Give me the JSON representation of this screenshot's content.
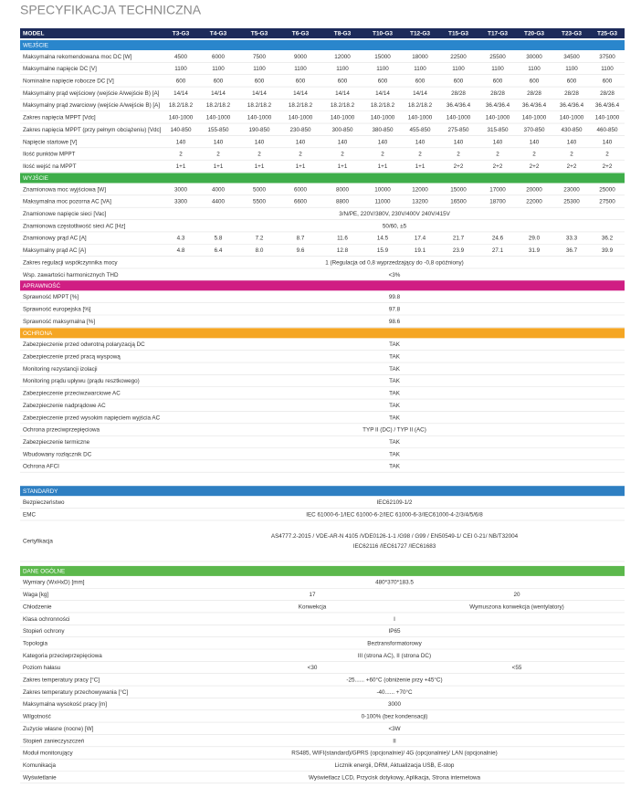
{
  "title": "SPECYFIKACJA TECHNICZNA",
  "table": {
    "header": [
      "MODEL",
      "T3-G3",
      "T4-G3",
      "T5-G3",
      "T6-G3",
      "T8-G3",
      "T10-G3",
      "T12-G3",
      "T15-G3",
      "T17-G3",
      "T20-G3",
      "T23-G3",
      "T25-G3"
    ],
    "sections": [
      {
        "title": "WEJŚCIE",
        "rows": [
          {
            "label": "Maksymalna rekomendowana moc DC [W]",
            "values": [
              "4500",
              "6000",
              "7500",
              "9000",
              "12000",
              "15000",
              "18000",
              "22500",
              "25500",
              "30000",
              "34500",
              "37500"
            ]
          },
          {
            "label": "Maksymalne napięcie DC [V]",
            "values": [
              "1100",
              "1100",
              "1100",
              "1100",
              "1100",
              "1100",
              "1100",
              "1100",
              "1100",
              "1100",
              "1100",
              "1100"
            ]
          },
          {
            "label": "Nominalne napięcie robocze DC [V]",
            "values": [
              "600",
              "600",
              "600",
              "600",
              "600",
              "600",
              "600",
              "600",
              "600",
              "600",
              "600",
              "600"
            ]
          },
          {
            "label": "Maksymalny prąd wejściowy (wejście A/wejście B) [A]",
            "values": [
              "14/14",
              "14/14",
              "14/14",
              "14/14",
              "14/14",
              "14/14",
              "14/14",
              "28/28",
              "28/28",
              "28/28",
              "28/28",
              "28/28"
            ]
          },
          {
            "label": "Maksymalny prąd zwarciowy (wejście A/wejście B) [A]",
            "values": [
              "18.2/18.2",
              "18.2/18.2",
              "18.2/18.2",
              "18.2/18.2",
              "18.2/18.2",
              "18.2/18.2",
              "18.2/18.2",
              "36.4/36.4",
              "36.4/36.4",
              "36.4/36.4",
              "36.4/36.4",
              "36.4/36.4"
            ]
          },
          {
            "label": "Zakres napięcia MPPT [Vdc]",
            "values": [
              "140-1000",
              "140-1000",
              "140-1000",
              "140-1000",
              "140-1000",
              "140-1000",
              "140-1000",
              "140-1000",
              "140-1000",
              "140-1000",
              "140-1000",
              "140-1000"
            ]
          },
          {
            "label": "Zakres napięcia MPPT (przy pełnym obciążeniu) [Vdc]",
            "values": [
              "140-850",
              "155-850",
              "190-850",
              "230-850",
              "300-850",
              "380-850",
              "455-850",
              "275-850",
              "315-850",
              "370-850",
              "430-850",
              "460-850"
            ]
          },
          {
            "label": "Napięcie startowe [V]",
            "values": [
              "140",
              "140",
              "140",
              "140",
              "140",
              "140",
              "140",
              "140",
              "140",
              "140",
              "140",
              "140"
            ]
          },
          {
            "label": "Ilość punktów MPPT",
            "values": [
              "2",
              "2",
              "2",
              "2",
              "2",
              "2",
              "2",
              "2",
              "2",
              "2",
              "2",
              "2"
            ]
          },
          {
            "label": "Ilość wejść na MPPT",
            "values": [
              "1+1",
              "1+1",
              "1+1",
              "1+1",
              "1+1",
              "1+1",
              "1+1",
              "2+2",
              "2+2",
              "2+2",
              "2+2",
              "2+2"
            ]
          }
        ]
      },
      {
        "title": "WYJŚCIE",
        "rows": [
          {
            "label": "Znamionowa moc wyjściowa [W]",
            "values": [
              "3000",
              "4000",
              "5000",
              "6000",
              "8000",
              "10000",
              "12000",
              "15000",
              "17000",
              "20000",
              "23000",
              "25000"
            ]
          },
          {
            "label": "Maksymalna moc pozorna AC [VA]",
            "values": [
              "3300",
              "4400",
              "5500",
              "6600",
              "8800",
              "11000",
              "13200",
              "16500",
              "18700",
              "22000",
              "25300",
              "27500"
            ]
          },
          {
            "label": "Znamionowe napięcie sieci [Vac]",
            "values": [
              "3/N/PE, 220V/380V, 230V/400V 240V/415V"
            ]
          },
          {
            "label": "Znamionowa częstotliwość sieci AC [Hz]",
            "values": [
              "50/60, ±5"
            ]
          },
          {
            "label": "Znamionowy prąd AC [A]",
            "values": [
              "4.3",
              "5.8",
              "7.2",
              "8.7",
              "11.6",
              "14.5",
              "17.4",
              "21.7",
              "24.6",
              "29.0",
              "33.3",
              "36.2"
            ]
          },
          {
            "label": "Maksymalny prąd AC [A]",
            "values": [
              "4.8",
              "6.4",
              "8.0",
              "9.6",
              "12.8",
              "15.9",
              "19.1",
              "23.9",
              "27.1",
              "31.9",
              "36.7",
              "39.9"
            ]
          },
          {
            "label": "Zakres regulacji współczynnika mocy",
            "values": [
              "1 (Regulacja od 0,8 wyprzedzający do -0,8 opóźniony)"
            ]
          },
          {
            "label": "Wsp. zawartości harmonicznych THD",
            "values": [
              "<3%"
            ]
          }
        ]
      },
      {
        "title": "APRAWNOŚĆ",
        "rows": [
          {
            "label": "Sprawność MPPT [%]",
            "values": [
              "99.8"
            ]
          },
          {
            "label": "Sprawność europejska [%]",
            "values": [
              "97.8"
            ]
          },
          {
            "label": "Sprawność maksymalna [%]",
            "values": [
              "98.6"
            ]
          }
        ]
      },
      {
        "title": "OCHRONA",
        "rows": [
          {
            "label": "Zabezpieczenie przed odwrotną polaryzacją DC",
            "values": [
              "TAK"
            ]
          },
          {
            "label": "Zabezpieczenie przed pracą wyspową",
            "values": [
              "TAK"
            ]
          },
          {
            "label": "Monitoring rezystancji izolacji",
            "values": [
              "TAK"
            ]
          },
          {
            "label": "Monitoring prądu upływu (prądu resztkowego)",
            "values": [
              "TAK"
            ]
          },
          {
            "label": "Zabezpieczenie przeciwzwarciowe AC",
            "values": [
              "TAK"
            ]
          },
          {
            "label": "Zabezpieczenie nadprądowe AC",
            "values": [
              "TAK"
            ]
          },
          {
            "label": "Zabezpieczenie przed wysokim napięciem wyjścia AC",
            "values": [
              "TAK"
            ]
          },
          {
            "label": "Ochrona przeciwprzepięciowa",
            "values": [
              "TYP II (DC) / TYP II (AC)"
            ]
          },
          {
            "label": "Zabezpieczenie termiczne",
            "values": [
              "TAK"
            ]
          },
          {
            "label": "Wbudowany rozłącznik DC",
            "values": [
              "TAK"
            ]
          },
          {
            "label": "Ochrona AFCI",
            "values": [
              "TAK"
            ]
          }
        ]
      },
      {
        "title": "STANDARDY",
        "rows": [
          {
            "label": "Bezpieczeństwo",
            "values": [
              "IEC62109-1/2"
            ]
          },
          {
            "label": "EMC",
            "values": [
              "IEC 61000-6-1/IEC 61000-6-2/IEC 61000-6-3/IEC61000-4-2/3/4/5/6/8"
            ]
          },
          {
            "label": "Certyfikacja",
            "lines": [
              "AS4777.2-2015 / VDE-AR-N 4105 /VDE0126-1-1 /G98 / G99 / EN50549-1/ CEI 0-21/ NB/T32004",
              "IEC62116 /IEC61727 /IEC61683"
            ]
          }
        ]
      },
      {
        "title": "DANE OGÓLNE",
        "rows": [
          {
            "label": "Wymiary (WxHxD) [mm]",
            "values": [
              "480*370*183.5"
            ]
          },
          {
            "label": "Waga [kg]",
            "values": [
              "17",
              "20"
            ]
          },
          {
            "label": "Chłodzenie",
            "values": [
              "Konwekcja",
              "Wymuszona konwekcja (wentylatory)"
            ]
          },
          {
            "label": "Klasa ochronności",
            "values": [
              "I"
            ]
          },
          {
            "label": "Stopień ochrony",
            "values": [
              "IP65"
            ]
          },
          {
            "label": "Topologia",
            "values": [
              "Beztransformatorowy"
            ]
          },
          {
            "label": "Kategoria przeciwprzepięciowa",
            "values": [
              "III (strona AC), II (strona DC)"
            ]
          },
          {
            "label": "Poziom hałasu",
            "values": [
              "<30",
              "<55"
            ]
          },
          {
            "label": "Zakres temperatury pracy [°C]",
            "values": [
              "-25...... +60°C (obniżenie przy +45°C)"
            ]
          },
          {
            "label": "Zakres temperatury przechowywania [°C]",
            "values": [
              "-40...... +70°C"
            ]
          },
          {
            "label": "Maksymalna wysokość pracy [m]",
            "values": [
              "3000"
            ]
          },
          {
            "label": "Wilgotność",
            "values": [
              "0-100% (bez kondensacji)"
            ]
          },
          {
            "label": "Zużycie własne (nocne) [W]",
            "values": [
              "<3W"
            ]
          },
          {
            "label": "Stopień zanieczyszczeń",
            "values": [
              "II"
            ]
          },
          {
            "label": "Moduł monitorujący",
            "values": [
              "RS485, WIFI(standard)/GPRS (opcjonalnie)/ 4G (opcjonalnie)/ LAN (opcjonalnie)"
            ]
          },
          {
            "label": "Komunikacja",
            "values": [
              "Licznik energii, DRM, Aktualizacja USB, E-stop"
            ]
          },
          {
            "label": "Wyświetlanie",
            "values": [
              "Wyświetlacz LCD, Przycisk dotykowy, Aplikacja, Strona internetowa"
            ]
          }
        ]
      }
    ]
  }
}
